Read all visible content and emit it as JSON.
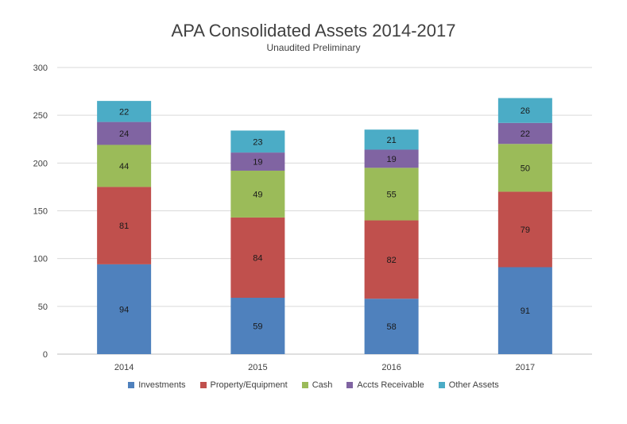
{
  "chart_data": {
    "type": "bar",
    "stacked": true,
    "title": "APA Consolidated Assets 2014-2017",
    "subtitle": "Unaudited Preliminary",
    "categories": [
      "2014",
      "2015",
      "2016",
      "2017"
    ],
    "series": [
      {
        "name": "Investments",
        "color": "#4f81bd",
        "values": [
          94,
          59,
          58,
          91
        ]
      },
      {
        "name": "Property/Equipment",
        "color": "#c0504d",
        "values": [
          81,
          84,
          82,
          79
        ]
      },
      {
        "name": "Cash",
        "color": "#9bbb59",
        "values": [
          44,
          49,
          55,
          50
        ]
      },
      {
        "name": "Accts Receivable",
        "color": "#8064a2",
        "values": [
          24,
          19,
          19,
          22
        ]
      },
      {
        "name": "Other Assets",
        "color": "#4bacc6",
        "values": [
          22,
          23,
          21,
          26
        ]
      }
    ],
    "ylim": [
      0,
      300
    ],
    "yticks": [
      0,
      50,
      100,
      150,
      200,
      250,
      300
    ],
    "grid": true,
    "legend_position": "bottom"
  }
}
